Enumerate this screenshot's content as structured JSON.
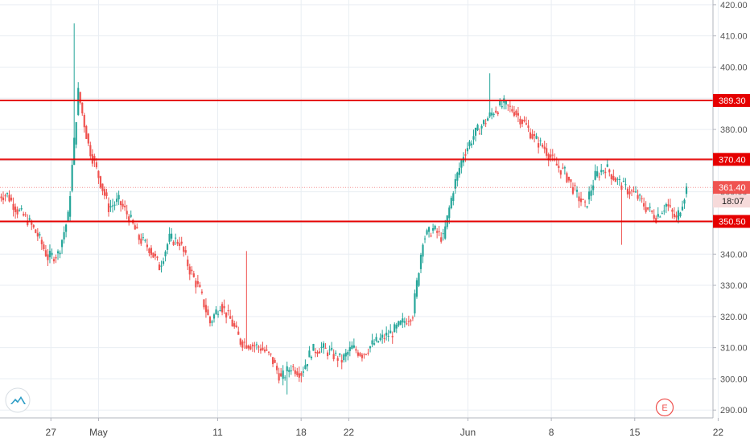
{
  "colors": {
    "up": "#26a69a",
    "down": "#ef5350",
    "level_line": "#e50000",
    "grid": "#e9eef3",
    "axis_line": "#b2b5be",
    "countdown_bg": "#f6dada",
    "logo": "#2f9ec6"
  },
  "icons": {
    "logo": "tradingview-logo-icon",
    "event": "earnings-event-icon"
  },
  "event_marker": {
    "label": "E",
    "x": "2020-06-19"
  },
  "countdown": "18:07",
  "chart_data": {
    "type": "candlestick",
    "title": "",
    "xlabel": "",
    "ylabel": "",
    "ylim": [
      288,
      421
    ],
    "grid": true,
    "y_ticks": [
      "290.00",
      "300.00",
      "310.00",
      "320.00",
      "330.00",
      "340.00",
      "350.00",
      "360.00",
      "370.00",
      "380.00",
      "390.00",
      "400.00",
      "410.00",
      "420.00"
    ],
    "x_ticks": [
      {
        "label": "27",
        "x": "2020-04-27"
      },
      {
        "label": "May",
        "x": "2020-05-01"
      },
      {
        "label": "11",
        "x": "2020-05-11"
      },
      {
        "label": "18",
        "x": "2020-05-18"
      },
      {
        "label": "22",
        "x": "2020-05-22"
      },
      {
        "label": "Jun",
        "x": "2020-06-01"
      },
      {
        "label": "8",
        "x": "2020-06-08"
      },
      {
        "label": "15",
        "x": "2020-06-15"
      },
      {
        "label": "22",
        "x": "2020-06-22"
      }
    ],
    "horizontal_levels": [
      {
        "value": 389.3,
        "label": "389.30"
      },
      {
        "value": 370.4,
        "label": "370.40"
      },
      {
        "value": 350.5,
        "label": "350.50"
      }
    ],
    "last_price": {
      "value": 361.4,
      "label": "361.40"
    },
    "x_start": "2020-04-23",
    "x_end": "2020-06-19",
    "close": [
      359,
      354,
      351,
      346,
      339,
      340,
      352,
      392,
      375,
      365,
      355,
      357,
      352,
      345,
      342,
      336,
      345,
      344,
      335,
      328,
      318,
      324,
      319,
      312,
      311,
      310,
      307,
      300,
      304,
      302,
      309,
      310,
      308,
      306,
      310,
      308,
      311,
      313,
      315,
      318,
      321,
      345,
      348,
      345,
      361,
      372,
      378,
      382,
      386,
      388,
      386,
      382,
      377,
      374,
      369,
      366,
      360,
      355,
      365,
      368,
      364,
      361,
      359,
      355,
      352,
      356,
      351,
      361
    ],
    "wick_extremes": [
      {
        "x": 7,
        "high": 414
      },
      {
        "x": 24,
        "high": 341
      },
      {
        "x": 28,
        "low": 295
      },
      {
        "x": 48,
        "high": 398
      },
      {
        "x": 61,
        "low": 343
      }
    ]
  }
}
